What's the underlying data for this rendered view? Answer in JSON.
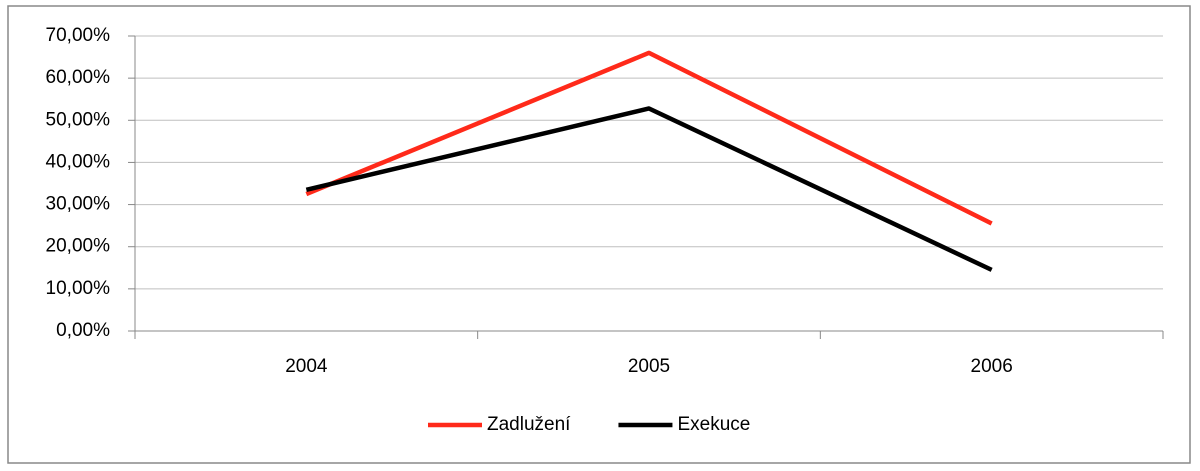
{
  "chart_data": {
    "type": "line",
    "categories": [
      "2004",
      "2005",
      "2006"
    ],
    "series": [
      {
        "name": "Zadlužení",
        "color": "#ff2a1a",
        "values": [
          32.5,
          66,
          25.5
        ]
      },
      {
        "name": "Exekuce",
        "color": "#000000",
        "values": [
          33.5,
          52.8,
          14.5
        ]
      }
    ],
    "ylim": [
      0,
      70
    ],
    "yticks": [
      {
        "value": 0,
        "label": "0,00%"
      },
      {
        "value": 10,
        "label": "10,00%"
      },
      {
        "value": 20,
        "label": "20,00%"
      },
      {
        "value": 30,
        "label": "30,00%"
      },
      {
        "value": 40,
        "label": "40,00%"
      },
      {
        "value": 50,
        "label": "50,00%"
      },
      {
        "value": 60,
        "label": "60,00%"
      },
      {
        "value": 70,
        "label": "70,00%"
      }
    ],
    "grid": true,
    "legend": "bottom"
  }
}
